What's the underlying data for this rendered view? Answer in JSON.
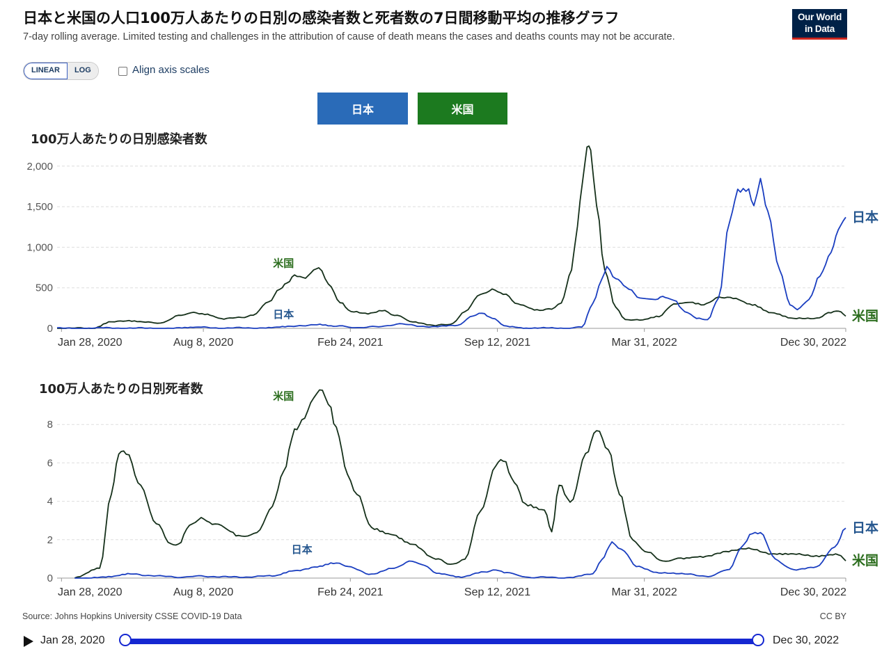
{
  "header": {
    "title": "日本と米国の人口100万人あたりの日別の感染者数と死者数の7日間移動平均の推移グラフ",
    "subtitle": "7-day rolling average. Limited testing and challenges in the attribution of cause of death means the cases and deaths counts may not be accurate.",
    "logo_line1": "Our World",
    "logo_line2": "in Data"
  },
  "controls": {
    "scale_linear": "LINEAR",
    "scale_log": "LOG",
    "align_label": "Align axis scales",
    "entity_japan": "日本",
    "entity_us": "米国"
  },
  "colors": {
    "japan": "#1a3ec0",
    "us": "#15301a",
    "japan_label": "#26578f",
    "us_label": "#2b6d1d",
    "grid": "#dddddd"
  },
  "chart_data": [
    {
      "type": "line",
      "title": "100万人あたりの日別感染者数",
      "x_ticks": [
        "Jan 28, 2020",
        "Aug 8, 2020",
        "Feb 24, 2021",
        "Sep 12, 2021",
        "Mar 31, 2022",
        "Dec 30, 2022"
      ],
      "y_ticks": [
        "0",
        "500",
        "1,000",
        "1,500",
        "2,000"
      ],
      "ylim": [
        0,
        2350
      ],
      "xlim": [
        "2020-01-22",
        "2022-12-30"
      ],
      "grid": true,
      "series": [
        {
          "name": "米国",
          "color": "#15301a",
          "points": [
            [
              "2020-01-22",
              0
            ],
            [
              "2020-03-10",
              2
            ],
            [
              "2020-04-05",
              90
            ],
            [
              "2020-04-25",
              88
            ],
            [
              "2020-05-25",
              70
            ],
            [
              "2020-06-15",
              75
            ],
            [
              "2020-07-05",
              150
            ],
            [
              "2020-07-22",
              200
            ],
            [
              "2020-08-10",
              170
            ],
            [
              "2020-09-05",
              110
            ],
            [
              "2020-09-25",
              135
            ],
            [
              "2020-10-15",
              165
            ],
            [
              "2020-11-05",
              330
            ],
            [
              "2020-11-20",
              500
            ],
            [
              "2020-11-30",
              550
            ],
            [
              "2020-12-10",
              640
            ],
            [
              "2020-12-25",
              610
            ],
            [
              "2021-01-05",
              700
            ],
            [
              "2021-01-12",
              750
            ],
            [
              "2021-01-25",
              560
            ],
            [
              "2021-02-10",
              330
            ],
            [
              "2021-02-25",
              210
            ],
            [
              "2021-03-20",
              175
            ],
            [
              "2021-04-12",
              215
            ],
            [
              "2021-04-25",
              160
            ],
            [
              "2021-05-20",
              85
            ],
            [
              "2021-06-20",
              35
            ],
            [
              "2021-07-10",
              45
            ],
            [
              "2021-07-30",
              210
            ],
            [
              "2021-08-20",
              420
            ],
            [
              "2021-09-05",
              490
            ],
            [
              "2021-09-20",
              430
            ],
            [
              "2021-10-10",
              290
            ],
            [
              "2021-11-05",
              220
            ],
            [
              "2021-11-25",
              250
            ],
            [
              "2021-12-08",
              310
            ],
            [
              "2021-12-22",
              700
            ],
            [
              "2021-12-30",
              1250
            ],
            [
              "2022-01-06",
              1800
            ],
            [
              "2022-01-12",
              2300
            ],
            [
              "2022-01-17",
              2150
            ],
            [
              "2022-01-25",
              1500
            ],
            [
              "2022-02-05",
              700
            ],
            [
              "2022-02-20",
              250
            ],
            [
              "2022-03-05",
              110
            ],
            [
              "2022-03-25",
              95
            ],
            [
              "2022-04-20",
              140
            ],
            [
              "2022-05-10",
              310
            ],
            [
              "2022-06-01",
              330
            ],
            [
              "2022-06-20",
              300
            ],
            [
              "2022-07-10",
              370
            ],
            [
              "2022-07-30",
              380
            ],
            [
              "2022-08-25",
              300
            ],
            [
              "2022-09-20",
              200
            ],
            [
              "2022-10-20",
              130
            ],
            [
              "2022-11-20",
              115
            ],
            [
              "2022-12-10",
              200
            ],
            [
              "2022-12-20",
              210
            ],
            [
              "2022-12-30",
              150
            ]
          ]
        },
        {
          "name": "日本",
          "color": "#1a3ec0",
          "points": [
            [
              "2020-01-22",
              0
            ],
            [
              "2020-04-10",
              4
            ],
            [
              "2020-05-20",
              1
            ],
            [
              "2020-07-10",
              3
            ],
            [
              "2020-08-05",
              10
            ],
            [
              "2020-09-10",
              4
            ],
            [
              "2020-11-01",
              6
            ],
            [
              "2020-12-01",
              18
            ],
            [
              "2021-01-10",
              50
            ],
            [
              "2021-02-05",
              25
            ],
            [
              "2021-03-10",
              10
            ],
            [
              "2021-05-10",
              50
            ],
            [
              "2021-06-15",
              15
            ],
            [
              "2021-07-20",
              40
            ],
            [
              "2021-08-10",
              150
            ],
            [
              "2021-08-22",
              190
            ],
            [
              "2021-09-05",
              120
            ],
            [
              "2021-09-25",
              30
            ],
            [
              "2021-10-25",
              2
            ],
            [
              "2021-12-15",
              2
            ],
            [
              "2022-01-05",
              10
            ],
            [
              "2022-01-20",
              300
            ],
            [
              "2022-02-01",
              620
            ],
            [
              "2022-02-08",
              760
            ],
            [
              "2022-02-20",
              630
            ],
            [
              "2022-03-10",
              500
            ],
            [
              "2022-03-25",
              380
            ],
            [
              "2022-04-15",
              350
            ],
            [
              "2022-04-25",
              380
            ],
            [
              "2022-05-10",
              340
            ],
            [
              "2022-05-25",
              200
            ],
            [
              "2022-06-10",
              130
            ],
            [
              "2022-06-25",
              110
            ],
            [
              "2022-07-10",
              380
            ],
            [
              "2022-07-25",
              1350
            ],
            [
              "2022-08-05",
              1730
            ],
            [
              "2022-08-20",
              1740
            ],
            [
              "2022-08-27",
              1520
            ],
            [
              "2022-09-05",
              1810
            ],
            [
              "2022-09-15",
              1450
            ],
            [
              "2022-10-01",
              700
            ],
            [
              "2022-10-15",
              300
            ],
            [
              "2022-10-25",
              240
            ],
            [
              "2022-11-10",
              360
            ],
            [
              "2022-11-25",
              650
            ],
            [
              "2022-12-10",
              920
            ],
            [
              "2022-12-20",
              1250
            ],
            [
              "2022-12-30",
              1370
            ]
          ]
        }
      ]
    },
    {
      "type": "line",
      "title": "100万人あたりの日別死者数",
      "x_ticks": [
        "Jan 28, 2020",
        "Aug 8, 2020",
        "Feb 24, 2021",
        "Sep 12, 2021",
        "Mar 31, 2022",
        "Dec 30, 2022"
      ],
      "y_ticks": [
        "0",
        "2",
        "4",
        "6",
        "8"
      ],
      "ylim": [
        0,
        10
      ],
      "xlim": [
        "2020-01-22",
        "2022-12-30"
      ],
      "grid": true,
      "series": [
        {
          "name": "米国",
          "color": "#15301a",
          "points": [
            [
              "2020-02-15",
              0
            ],
            [
              "2020-03-20",
              0.5
            ],
            [
              "2020-04-05",
              4.5
            ],
            [
              "2020-04-15",
              6.5
            ],
            [
              "2020-04-25",
              6.4
            ],
            [
              "2020-05-15",
              4.8
            ],
            [
              "2020-06-05",
              2.8
            ],
            [
              "2020-06-25",
              1.8
            ],
            [
              "2020-07-05",
              1.7
            ],
            [
              "2020-07-20",
              2.7
            ],
            [
              "2020-08-05",
              3.2
            ],
            [
              "2020-08-20",
              2.9
            ],
            [
              "2020-09-10",
              2.5
            ],
            [
              "2020-09-25",
              2.2
            ],
            [
              "2020-10-20",
              2.3
            ],
            [
              "2020-11-10",
              3.8
            ],
            [
              "2020-11-25",
              5.5
            ],
            [
              "2020-12-10",
              7.6
            ],
            [
              "2020-12-20",
              8.3
            ],
            [
              "2021-01-01",
              9.0
            ],
            [
              "2021-01-13",
              9.7
            ],
            [
              "2021-01-25",
              9.2
            ],
            [
              "2021-02-05",
              7.8
            ],
            [
              "2021-02-20",
              5.5
            ],
            [
              "2021-03-05",
              4.3
            ],
            [
              "2021-03-25",
              2.6
            ],
            [
              "2021-04-20",
              2.3
            ],
            [
              "2021-05-20",
              1.8
            ],
            [
              "2021-06-20",
              1.0
            ],
            [
              "2021-07-10",
              0.7
            ],
            [
              "2021-07-30",
              1.0
            ],
            [
              "2021-08-20",
              3.5
            ],
            [
              "2021-09-10",
              5.8
            ],
            [
              "2021-09-20",
              6.2
            ],
            [
              "2021-10-05",
              5.0
            ],
            [
              "2021-10-20",
              3.8
            ],
            [
              "2021-11-15",
              3.5
            ],
            [
              "2021-11-25",
              2.5
            ],
            [
              "2021-12-05",
              4.9
            ],
            [
              "2021-12-20",
              4.0
            ],
            [
              "2022-01-10",
              6.3
            ],
            [
              "2022-01-25",
              7.6
            ],
            [
              "2022-02-10",
              6.8
            ],
            [
              "2022-02-25",
              4.5
            ],
            [
              "2022-03-15",
              2.0
            ],
            [
              "2022-04-05",
              1.3
            ],
            [
              "2022-04-25",
              0.9
            ],
            [
              "2022-05-20",
              1.0
            ],
            [
              "2022-06-15",
              1.1
            ],
            [
              "2022-07-20",
              1.4
            ],
            [
              "2022-08-20",
              1.5
            ],
            [
              "2022-09-20",
              1.3
            ],
            [
              "2022-10-20",
              1.3
            ],
            [
              "2022-11-20",
              1.1
            ],
            [
              "2022-12-20",
              1.2
            ],
            [
              "2022-12-30",
              0.9
            ]
          ]
        },
        {
          "name": "日本",
          "color": "#1a3ec0",
          "points": [
            [
              "2020-02-15",
              0
            ],
            [
              "2020-04-01",
              0.05
            ],
            [
              "2020-05-01",
              0.2
            ],
            [
              "2020-05-25",
              0.15
            ],
            [
              "2020-06-30",
              0.05
            ],
            [
              "2020-08-10",
              0.1
            ],
            [
              "2020-09-15",
              0.05
            ],
            [
              "2020-11-10",
              0.1
            ],
            [
              "2020-12-10",
              0.4
            ],
            [
              "2021-01-10",
              0.6
            ],
            [
              "2021-02-01",
              0.8
            ],
            [
              "2021-02-25",
              0.55
            ],
            [
              "2021-03-25",
              0.2
            ],
            [
              "2021-04-25",
              0.5
            ],
            [
              "2021-05-15",
              0.9
            ],
            [
              "2021-06-01",
              0.7
            ],
            [
              "2021-06-25",
              0.25
            ],
            [
              "2021-07-25",
              0.05
            ],
            [
              "2021-08-25",
              0.3
            ],
            [
              "2021-09-10",
              0.45
            ],
            [
              "2021-09-25",
              0.3
            ],
            [
              "2021-10-20",
              0.05
            ],
            [
              "2021-12-20",
              0.02
            ],
            [
              "2022-01-20",
              0.2
            ],
            [
              "2022-02-01",
              1.0
            ],
            [
              "2022-02-15",
              1.85
            ],
            [
              "2022-02-28",
              1.5
            ],
            [
              "2022-03-20",
              0.6
            ],
            [
              "2022-04-20",
              0.3
            ],
            [
              "2022-05-25",
              0.2
            ],
            [
              "2022-06-30",
              0.1
            ],
            [
              "2022-07-25",
              0.5
            ],
            [
              "2022-08-10",
              1.6
            ],
            [
              "2022-08-25",
              2.3
            ],
            [
              "2022-09-05",
              2.3
            ],
            [
              "2022-09-25",
              1.0
            ],
            [
              "2022-10-20",
              0.4
            ],
            [
              "2022-11-20",
              0.6
            ],
            [
              "2022-12-15",
              1.6
            ],
            [
              "2022-12-30",
              2.6
            ]
          ]
        }
      ]
    }
  ],
  "footer": {
    "source": "Source: Johns Hopkins University CSSE COVID-19 Data",
    "license": "CC BY",
    "timeline_start": "Jan 28, 2020",
    "timeline_end": "Dec 30, 2022"
  }
}
